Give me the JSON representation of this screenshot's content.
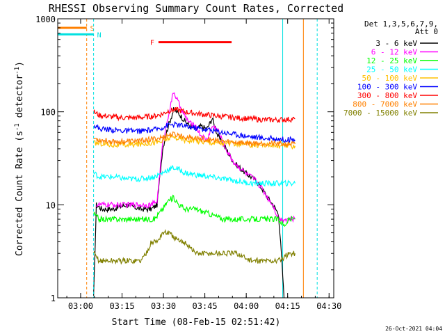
{
  "chart_data": {
    "type": "line",
    "title": "RHESSI Observing Summary Count Rates, Corrected",
    "xlabel": "Start Time (08-Feb-15 02:51:42)",
    "ylabel_main": "Corrected Count Rate (s",
    "ylabel_sup1": "-1",
    "ylabel_mid": " detector",
    "ylabel_sup2": "-1",
    "ylabel_end": ")",
    "x_unit": "minutes after 02:51:42",
    "xlim": [
      0,
      100
    ],
    "ylim": [
      1,
      1000
    ],
    "yscale": "log",
    "x_ticks": [
      {
        "label": "03:00",
        "x": 8.3
      },
      {
        "label": "03:15",
        "x": 23.3
      },
      {
        "label": "03:30",
        "x": 38.3
      },
      {
        "label": "03:45",
        "x": 53.3
      },
      {
        "label": "04:00",
        "x": 68.3
      },
      {
        "label": "04:15",
        "x": 83.3
      },
      {
        "label": "04:30",
        "x": 98.3
      }
    ],
    "y_ticks": [
      {
        "label": "1",
        "y": 1
      },
      {
        "label": "10",
        "y": 10
      },
      {
        "label": "100",
        "y": 100
      },
      {
        "label": "1000",
        "y": 1000
      }
    ],
    "legend": {
      "position": "right",
      "header": [
        "Det 1,3,5,6,7,9,",
        "Att 0"
      ]
    },
    "flags": [
      {
        "label": "S",
        "color": "#ff8000",
        "x_end": 10.5,
        "y": 800,
        "vline_x": 10.5
      },
      {
        "label": "N",
        "color": "#00e0e0",
        "x_end": 13.0,
        "y": 680,
        "vline_x": 13.0
      },
      {
        "label": "F",
        "color": "#ff0000",
        "x_start": 36.5,
        "x_end": 63.0,
        "y": 560
      }
    ],
    "vlines": [
      {
        "x": 81.5,
        "color": "#00e0e0",
        "style": "solid"
      },
      {
        "x": 89.0,
        "color": "#ff8000",
        "style": "solid"
      },
      {
        "x": 94.0,
        "color": "#00e0e0",
        "style": "dashed"
      }
    ],
    "series": [
      {
        "name": "3 - 6 keV",
        "color": "#000000",
        "x": [
          13,
          14,
          16,
          20,
          25,
          30,
          34,
          36,
          38,
          40,
          42,
          44,
          46,
          48,
          50,
          52,
          54,
          56,
          58,
          60,
          62,
          64,
          66,
          68,
          70,
          72,
          74,
          76,
          78,
          80,
          81,
          82
        ],
        "y": [
          1,
          10,
          9,
          9,
          10,
          9,
          9,
          10,
          40,
          70,
          105,
          95,
          80,
          70,
          65,
          70,
          65,
          85,
          55,
          45,
          35,
          28,
          25,
          22,
          20,
          18,
          15,
          12,
          10,
          8,
          3,
          1
        ]
      },
      {
        "name": "6 - 12 keV",
        "color": "#ff00ff",
        "x": [
          14,
          16,
          20,
          25,
          30,
          34,
          36,
          38,
          40,
          42,
          44,
          46,
          48,
          50,
          52,
          54,
          56,
          58,
          60,
          62,
          64,
          66,
          68,
          70,
          72,
          74,
          76,
          78,
          80,
          82,
          84,
          86
        ],
        "y": [
          10,
          10,
          10,
          10,
          10,
          10,
          11,
          45,
          90,
          165,
          120,
          90,
          75,
          70,
          55,
          50,
          70,
          65,
          45,
          35,
          28,
          25,
          22,
          20,
          18,
          15,
          12,
          10,
          7,
          7,
          7,
          7
        ]
      },
      {
        "name": "12 - 25 keV",
        "color": "#00ff00",
        "x": [
          13,
          15,
          20,
          25,
          30,
          35,
          38,
          40,
          42,
          44,
          46,
          50,
          55,
          60,
          65,
          70,
          75,
          80,
          82,
          84,
          86
        ],
        "y": [
          8,
          7,
          7,
          7,
          7,
          7,
          9,
          11,
          12,
          10,
          9,
          9,
          8,
          7,
          7,
          7,
          7,
          7,
          6,
          7,
          7
        ]
      },
      {
        "name": "25 - 50 keV",
        "color": "#00ffff",
        "x": [
          13,
          15,
          20,
          25,
          30,
          35,
          38,
          40,
          42,
          44,
          46,
          50,
          55,
          60,
          65,
          70,
          75,
          80,
          84,
          86
        ],
        "y": [
          22,
          20,
          20,
          19,
          19,
          20,
          22,
          24,
          25,
          24,
          22,
          21,
          20,
          19,
          18,
          17,
          17,
          17,
          17,
          17
        ]
      },
      {
        "name": "50 - 100 keV",
        "color": "#ffc000",
        "x": [
          13,
          15,
          20,
          25,
          30,
          35,
          38,
          40,
          42,
          44,
          46,
          50,
          55,
          60,
          65,
          70,
          75,
          80,
          84,
          86
        ],
        "y": [
          46,
          46,
          44,
          44,
          45,
          47,
          48,
          52,
          53,
          52,
          50,
          49,
          47,
          46,
          45,
          44,
          44,
          43,
          43,
          43
        ]
      },
      {
        "name": "100 - 300 keV",
        "color": "#0000ff",
        "x": [
          13,
          15,
          20,
          25,
          30,
          35,
          38,
          40,
          42,
          44,
          46,
          50,
          55,
          60,
          65,
          70,
          75,
          80,
          84,
          86
        ],
        "y": [
          72,
          66,
          64,
          62,
          62,
          64,
          68,
          72,
          73,
          72,
          70,
          67,
          64,
          60,
          57,
          54,
          52,
          51,
          50,
          50
        ]
      },
      {
        "name": "300 - 800 keV",
        "color": "#ff0000",
        "x": [
          13,
          15,
          20,
          25,
          30,
          35,
          38,
          40,
          42,
          44,
          46,
          50,
          55,
          60,
          65,
          70,
          75,
          80,
          84,
          86
        ],
        "y": [
          100,
          92,
          88,
          86,
          87,
          90,
          95,
          102,
          105,
          104,
          100,
          96,
          92,
          89,
          86,
          84,
          82,
          82,
          83,
          84
        ]
      },
      {
        "name": "800 - 7000 keV",
        "color": "#ff8000",
        "x": [
          13,
          15,
          20,
          25,
          30,
          35,
          38,
          40,
          42,
          44,
          46,
          50,
          55,
          60,
          65,
          70,
          75,
          80,
          84,
          86
        ],
        "y": [
          52,
          50,
          48,
          48,
          49,
          51,
          53,
          56,
          57,
          56,
          54,
          52,
          50,
          48,
          47,
          46,
          46,
          45,
          45,
          45
        ]
      },
      {
        "name": "7000 - 15000 keV",
        "color": "#808000",
        "x": [
          13,
          15,
          20,
          25,
          28,
          30,
          32,
          34,
          36,
          38,
          40,
          42,
          44,
          46,
          48,
          50,
          55,
          60,
          65,
          70,
          75,
          80,
          84,
          86
        ],
        "y": [
          3,
          2.5,
          2.5,
          2.5,
          2.5,
          2.5,
          3,
          4,
          4,
          5,
          5,
          4.5,
          4,
          4,
          3.5,
          3,
          3,
          3,
          3,
          2.5,
          2.5,
          2.5,
          3,
          3
        ]
      }
    ]
  },
  "footer": {
    "timestamp": "26-Oct-2021 04:04"
  }
}
